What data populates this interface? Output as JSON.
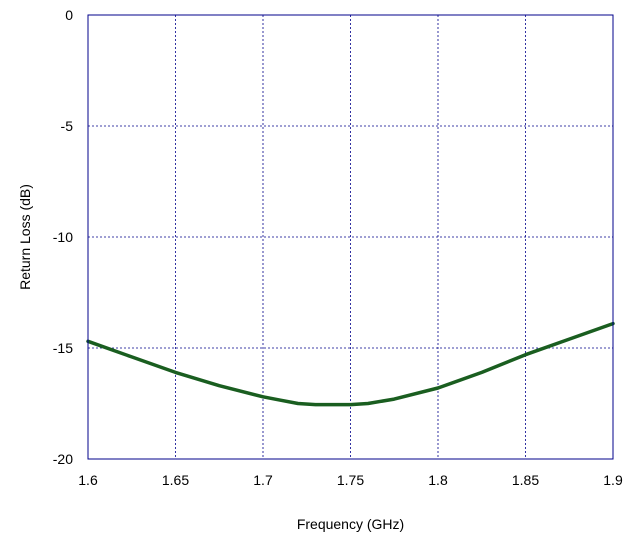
{
  "chart_data": {
    "type": "line",
    "title": "",
    "xlabel": "Frequency (GHz)",
    "ylabel": "Return Loss (dB)",
    "xlim": [
      1.6,
      1.9
    ],
    "ylim": [
      -20,
      0
    ],
    "xticks": [
      1.6,
      1.65,
      1.7,
      1.75,
      1.8,
      1.85,
      1.9
    ],
    "yticks": [
      0,
      -5,
      -10,
      -15,
      -20
    ],
    "xtick_labels": [
      "1.6",
      "1.65",
      "1.7",
      "1.75",
      "1.8",
      "1.85",
      "1.9"
    ],
    "ytick_labels": [
      "0",
      "-5",
      "-10",
      "-15",
      "-20"
    ],
    "grid": true,
    "legend": "none",
    "colors": {
      "line": "#1a5e20",
      "grid": "#00008b",
      "frame": "#00008b",
      "background": "#ffffff"
    },
    "series": [
      {
        "x": [
          1.6,
          1.625,
          1.65,
          1.675,
          1.7,
          1.71,
          1.72,
          1.73,
          1.74,
          1.75,
          1.76,
          1.775,
          1.8,
          1.825,
          1.85,
          1.875,
          1.9
        ],
        "values": [
          -14.7,
          -15.4,
          -16.1,
          -16.7,
          -17.2,
          -17.35,
          -17.5,
          -17.55,
          -17.55,
          -17.55,
          -17.5,
          -17.3,
          -16.8,
          -16.1,
          -15.3,
          -14.6,
          -13.9
        ]
      }
    ]
  }
}
